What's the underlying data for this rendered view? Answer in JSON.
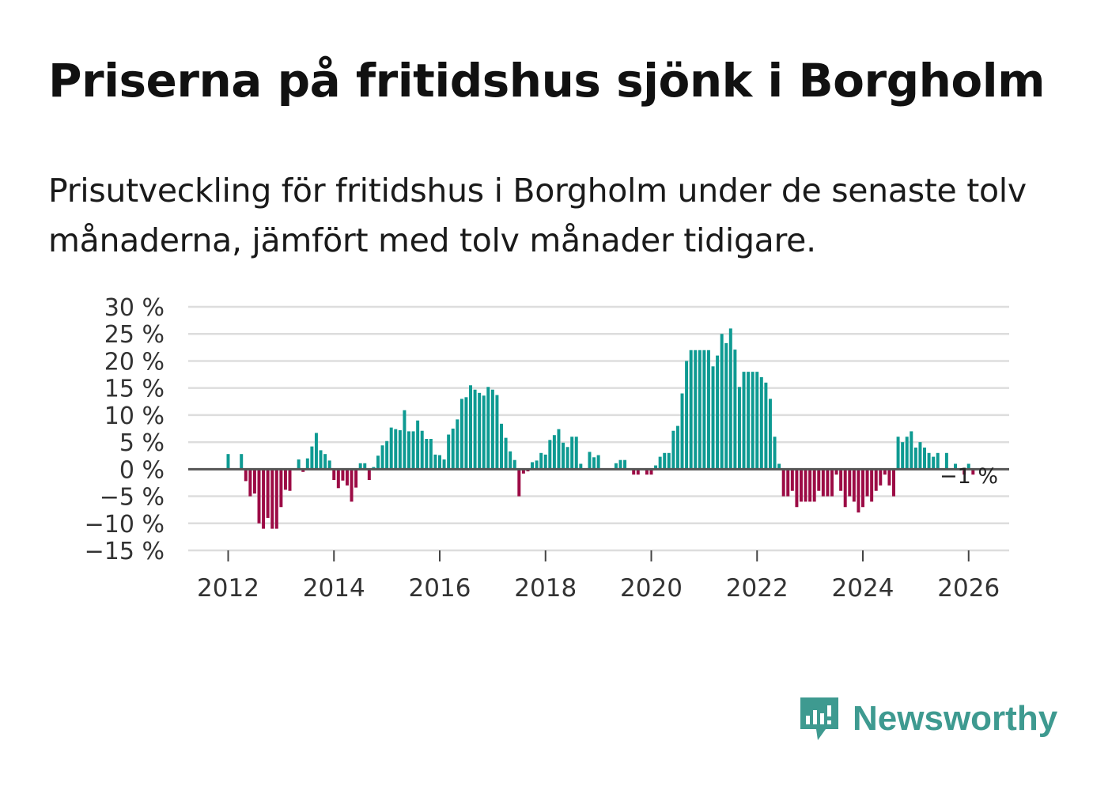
{
  "title": "Priserna på fritidshus sjönk i Borgholm",
  "subtitle": "Prisutveckling för fritidshus i Borgholm under de senaste tolv månaderna, jämfört med tolv månader tidigare.",
  "brand": {
    "name": "Newsworthy",
    "icon": "newsworthy-logo-icon"
  },
  "colors": {
    "positive": "#0e9a92",
    "negative": "#9c0b45",
    "gridline": "#dddddd",
    "zeroline": "#555555",
    "brand": "#3e9a90"
  },
  "chart_data": {
    "type": "bar",
    "title": "Priserna på fritidshus sjönk i Borgholm",
    "xlabel": "",
    "ylabel": "",
    "ylim": [
      -15,
      30
    ],
    "y_ticks": [
      30,
      25,
      20,
      15,
      10,
      5,
      0,
      -5,
      -10,
      -15
    ],
    "y_tick_labels": [
      "30 %",
      "25 %",
      "20 %",
      "15 %",
      "10 %",
      "5 %",
      "0 %",
      "−5 %",
      "−10 %",
      "−15 %"
    ],
    "x_ticks": [
      2012,
      2014,
      2016,
      2018,
      2020,
      2022,
      2024,
      2026
    ],
    "x_tick_labels": [
      "2012",
      "2014",
      "2016",
      "2018",
      "2020",
      "2022",
      "2024",
      "2026"
    ],
    "x_start": 2011.75,
    "x_step": 0.083333,
    "values": [
      0,
      0,
      0,
      2.8,
      0,
      0,
      2.8,
      -2.2,
      -5,
      -4.5,
      -10,
      -11,
      -9,
      -11,
      -11,
      -7,
      -3.8,
      -4,
      0,
      1.8,
      -0.5,
      2,
      4.2,
      6.7,
      3.5,
      2.8,
      1.6,
      -2,
      -3.5,
      -2.1,
      -3,
      -6,
      -3.4,
      1.1,
      1.1,
      -2,
      0.4,
      2.5,
      4.4,
      5.2,
      7.7,
      7.4,
      7.2,
      10.9,
      7,
      7,
      9,
      7.1,
      5.6,
      5.6,
      2.7,
      2.6,
      1.8,
      6.4,
      7.5,
      9.2,
      13,
      13.3,
      15.5,
      14.7,
      14.1,
      13.6,
      15.2,
      14.7,
      13.7,
      8.4,
      5.8,
      3.3,
      1.7,
      -5,
      -0.8,
      -0.4,
      1.3,
      1.6,
      3,
      2.7,
      5.4,
      6.3,
      7.4,
      4.9,
      4.1,
      6,
      6,
      1,
      0,
      3.2,
      2.2,
      2.6,
      0,
      0,
      0,
      1.1,
      1.7,
      1.7,
      0,
      -1,
      -1,
      0,
      -1,
      -1,
      0.7,
      2.3,
      3,
      3,
      7.1,
      8,
      14,
      20,
      22,
      22,
      22,
      22,
      22,
      19,
      21,
      25,
      23.3,
      26,
      22.1,
      15.2,
      18,
      18,
      18,
      18,
      17,
      16,
      13,
      6,
      1,
      -5,
      -5,
      -4,
      -7,
      -6,
      -6,
      -6,
      -6,
      -4,
      -5,
      -5,
      -5,
      -1,
      -4,
      -7,
      -5,
      -6,
      -8,
      -7,
      -5,
      -6,
      -4,
      -3,
      -1,
      -3,
      -5,
      6,
      5,
      6,
      7,
      4,
      5,
      4,
      3,
      2.3,
      3,
      0,
      3,
      0,
      1,
      0,
      -1,
      1,
      -1
    ],
    "last_value_label": "−1 %"
  }
}
